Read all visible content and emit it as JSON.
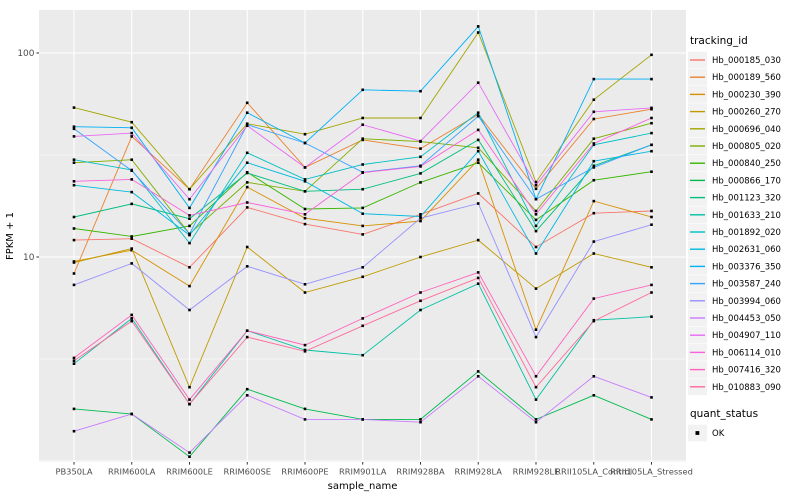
{
  "chart_data": {
    "type": "line",
    "title": "",
    "xlabel": "sample_name",
    "ylabel": "FPKM + 1",
    "yscale": "log10",
    "ylim": [
      0.99,
      162
    ],
    "yticks": [
      10,
      100
    ],
    "ytick_labels": [
      "10",
      "100"
    ],
    "yticks_minor": [
      3.162,
      31.62
    ],
    "grid": true,
    "panel_bg": "#EBEBEB",
    "grid_color": "#FFFFFF",
    "tick_label_color": "#4D4D4D",
    "axis_title_color": "#000000",
    "marker": {
      "shape": "square",
      "color": "#000000"
    },
    "legend_position": "right",
    "legend_key_bg": "#F2F2F2",
    "categories": [
      "PB350LA",
      "RRIM600LA",
      "RRIM600LE",
      "RRIM600SE",
      "RRIM600PE",
      "RRIM901LA",
      "RRIM928BA",
      "RRIM928LA",
      "RRIM928LE",
      "RRII105LA_Control",
      "RRII105LA_Stressed"
    ],
    "legend_title": "tracking_id",
    "quant_legend": {
      "title": "quant_status",
      "items": [
        {
          "label": "OK",
          "marker": "black-square"
        }
      ]
    },
    "series": [
      {
        "name": "Hb_000185_030",
        "color": "#F8766D",
        "values": [
          12.1,
          12.3,
          8.9,
          17.5,
          14.5,
          12.9,
          16.2,
          20.5,
          11.2,
          16.4,
          16.8
        ]
      },
      {
        "name": "Hb_000189_560",
        "color": "#EA8331",
        "values": [
          8.3,
          39,
          21.5,
          57,
          27.5,
          37.5,
          34,
          50,
          21.6,
          47.5,
          53
        ]
      },
      {
        "name": "Hb_000230_390",
        "color": "#D89000",
        "values": [
          9.5,
          10.8,
          7.2,
          22,
          15.5,
          14.2,
          15,
          30,
          4.4,
          18.8,
          15.7
        ]
      },
      {
        "name": "Hb_000260_270",
        "color": "#C09B00",
        "values": [
          9.4,
          11,
          2.3,
          11.2,
          6.7,
          8,
          10,
          12.1,
          7,
          10.4,
          8.9
        ]
      },
      {
        "name": "Hb_000696_040",
        "color": "#A3A500",
        "values": [
          54,
          45.8,
          21.5,
          45,
          40,
          48,
          48,
          126,
          23.3,
          59,
          98
        ]
      },
      {
        "name": "Hb_000805_020",
        "color": "#7CAE00",
        "values": [
          29,
          30,
          13,
          23.2,
          21,
          38,
          36.8,
          34.3,
          16.8,
          38,
          45.3
        ]
      },
      {
        "name": "Hb_000840_250",
        "color": "#39B600",
        "values": [
          13.8,
          12.6,
          14.2,
          26,
          17.2,
          17.4,
          23.2,
          29,
          15.2,
          23.8,
          26.2
        ]
      },
      {
        "name": "Hb_000866_170",
        "color": "#00BB4E",
        "values": [
          1.8,
          1.7,
          1.05,
          2.25,
          1.8,
          1.6,
          1.6,
          2.75,
          1.6,
          2.1,
          1.6
        ]
      },
      {
        "name": "Hb_001123_320",
        "color": "#00BF7D",
        "values": [
          15.7,
          18.2,
          15.4,
          25.8,
          21,
          21.5,
          25.7,
          37.5,
          13.4,
          28,
          35.5
        ]
      },
      {
        "name": "Hb_001633_210",
        "color": "#00C1A3",
        "values": [
          3.0,
          5.0,
          1.9,
          4.35,
          3.5,
          3.3,
          5.5,
          7.4,
          2.0,
          4.9,
          5.1
        ]
      },
      {
        "name": "Hb_001892_020",
        "color": "#00BFC4",
        "values": [
          30,
          26.7,
          11.7,
          32.4,
          24,
          28.4,
          31,
          51,
          14.2,
          35.5,
          40.5
        ]
      },
      {
        "name": "Hb_002631_060",
        "color": "#00BAE0",
        "values": [
          22.5,
          20.8,
          12.8,
          29,
          23.5,
          16.3,
          15.8,
          33,
          10.4,
          29.5,
          33
        ]
      },
      {
        "name": "Hb_003376_350",
        "color": "#00B0F6",
        "values": [
          43.5,
          43,
          17.4,
          51,
          36.2,
          66,
          65,
          135,
          19.2,
          74.5,
          74.5
        ]
      },
      {
        "name": "Hb_003587_240",
        "color": "#35A2FF",
        "values": [
          42.5,
          26.5,
          13,
          44.5,
          36.2,
          26,
          28,
          49,
          19.2,
          27.5,
          35.5
        ]
      },
      {
        "name": "Hb_003994_060",
        "color": "#9590FF",
        "values": [
          7.3,
          9.3,
          5.5,
          9.0,
          7.35,
          8.9,
          15.5,
          18.3,
          4.05,
          11.9,
          14.4
        ]
      },
      {
        "name": "Hb_004453_050",
        "color": "#C77CFF",
        "values": [
          1.4,
          1.7,
          1.1,
          2.1,
          1.6,
          1.6,
          1.55,
          2.6,
          1.55,
          2.6,
          2.05
        ]
      },
      {
        "name": "Hb_004907_110",
        "color": "#E76BF3",
        "values": [
          39,
          40.5,
          19.2,
          44,
          27.5,
          44.5,
          37,
          71.5,
          22.5,
          51.5,
          53.8
        ]
      },
      {
        "name": "Hb_006114_010",
        "color": "#FA62DB",
        "values": [
          23.5,
          24,
          16,
          18.5,
          16.2,
          25.9,
          27.8,
          42,
          16.2,
          36,
          48
        ]
      },
      {
        "name": "Hb_007416_320",
        "color": "#FF62BC",
        "values": [
          3.2,
          5.2,
          2.0,
          4.35,
          3.7,
          5.0,
          6.7,
          8.4,
          2.6,
          6.25,
          7.3
        ]
      },
      {
        "name": "Hb_010883_090",
        "color": "#FF6A98",
        "values": [
          3.1,
          4.85,
          1.9,
          4.05,
          3.45,
          4.6,
          6.1,
          7.9,
          2.3,
          4.85,
          6.7
        ]
      }
    ]
  }
}
